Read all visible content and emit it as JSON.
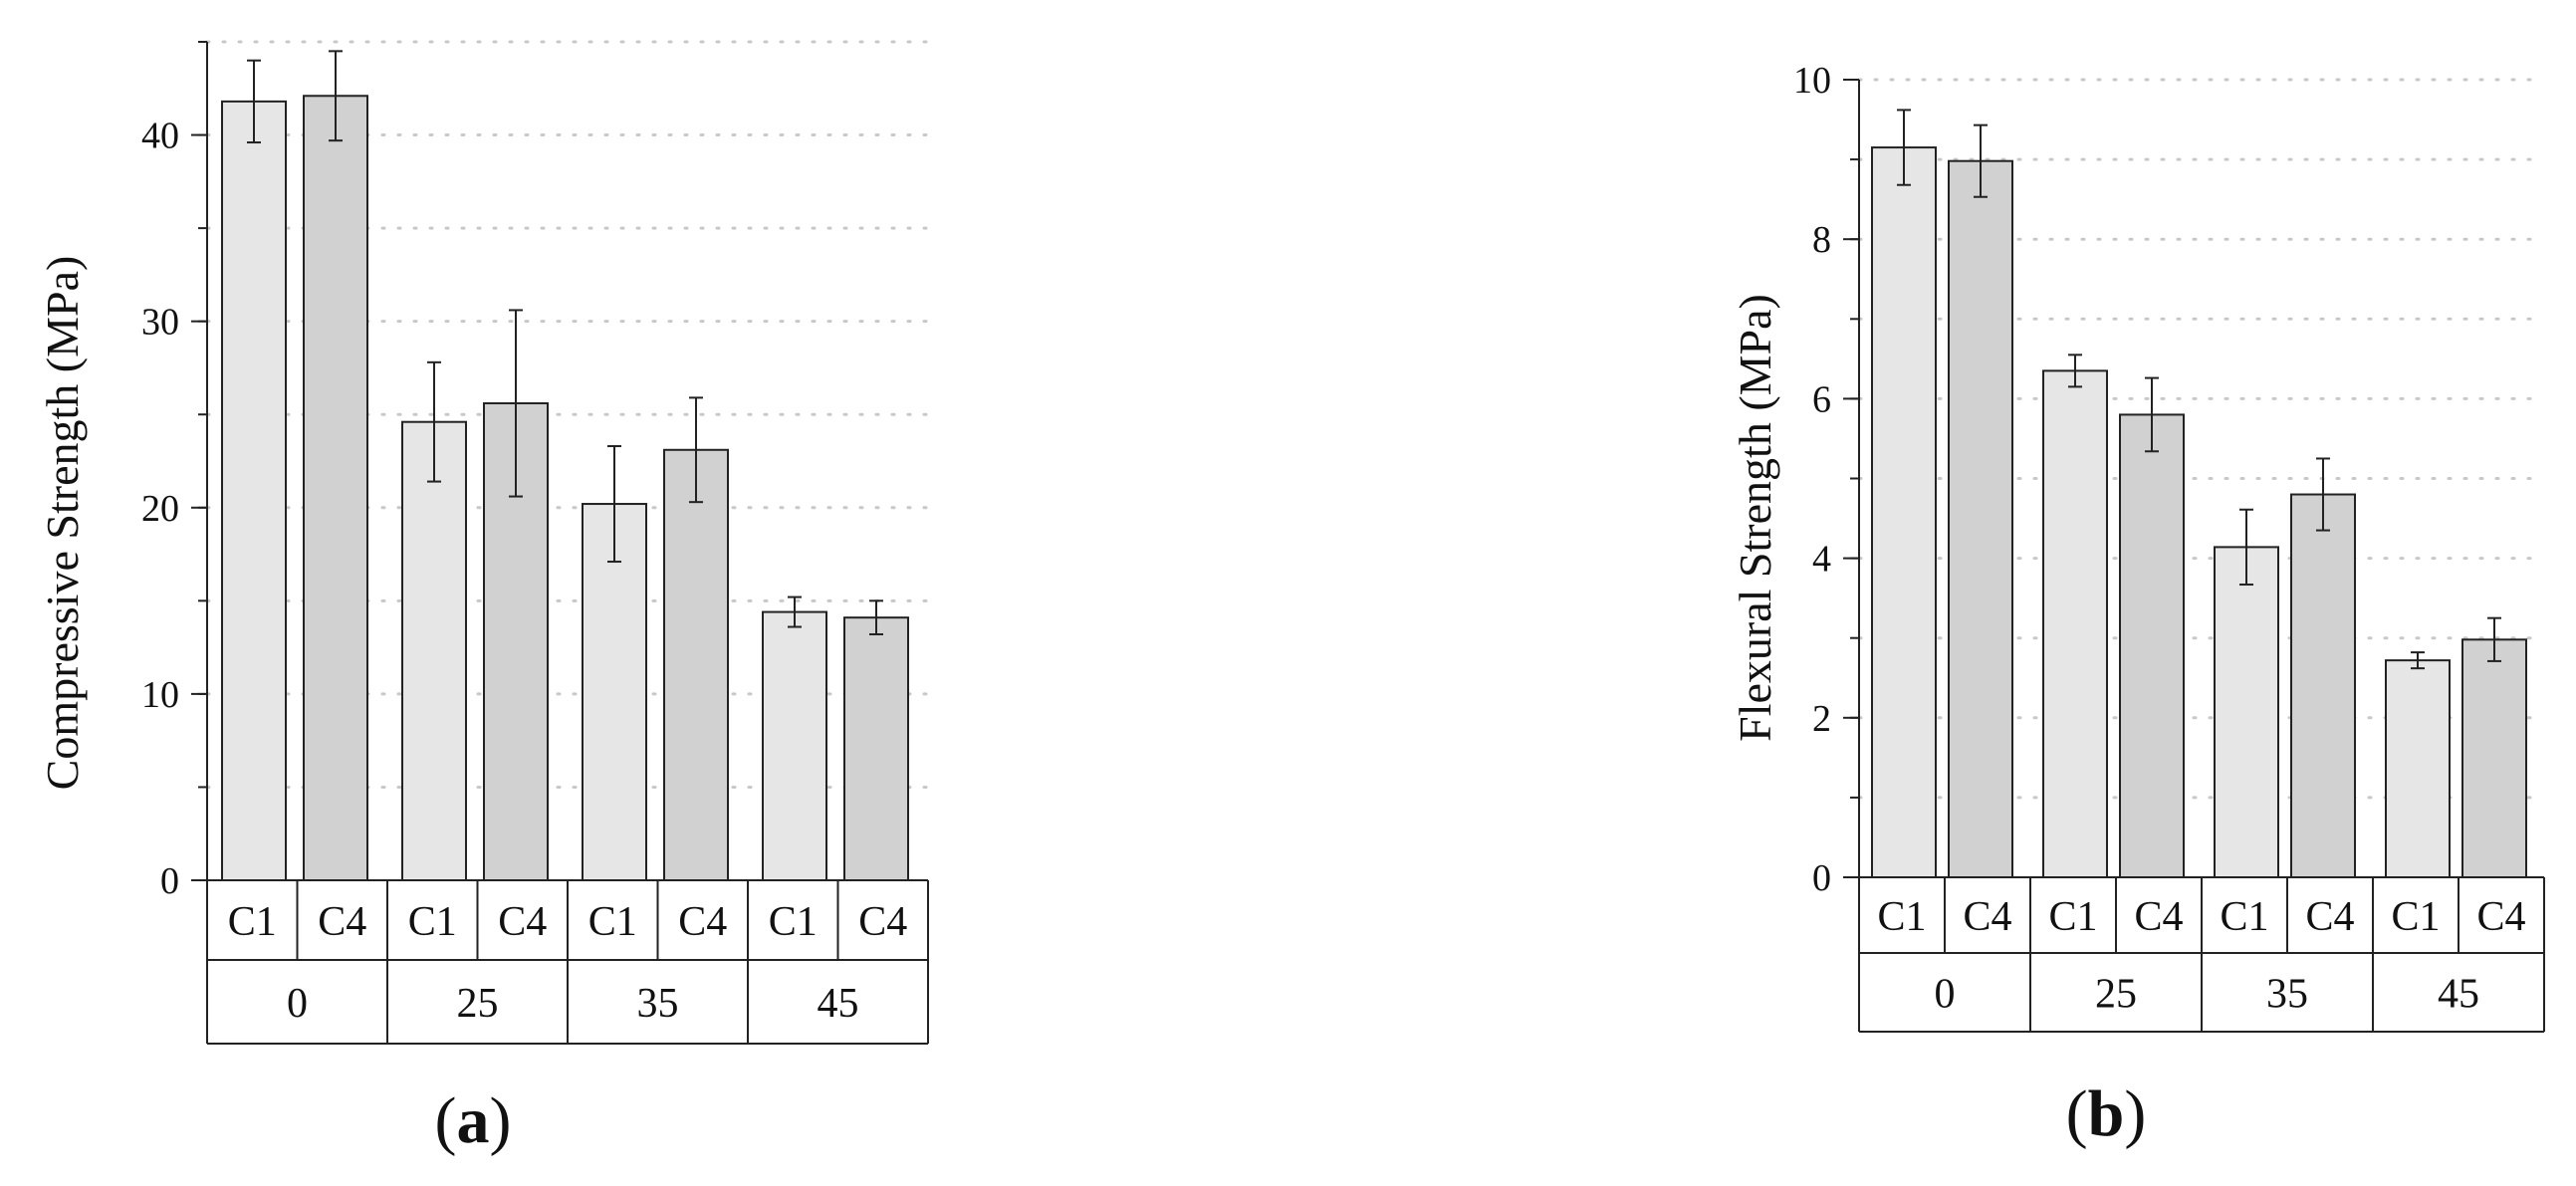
{
  "chart_data": [
    {
      "type": "bar",
      "panel_label": "(a)",
      "ylabel": "Compressive Strength (MPa)",
      "ylim": [
        0,
        45
      ],
      "yticks": [
        0,
        10,
        20,
        30,
        40
      ],
      "grid": "horizontal dotted",
      "groups": [
        "0",
        "25",
        "35",
        "45"
      ],
      "subcategories": [
        "C1",
        "C4"
      ],
      "subcategory_colors": [
        "#e6e6e6",
        "#d1d1d1"
      ],
      "values": [
        [
          41.8,
          42.1
        ],
        [
          24.6,
          25.6
        ],
        [
          20.2,
          23.1
        ],
        [
          14.4,
          14.1
        ]
      ],
      "errors": [
        [
          2.2,
          2.4
        ],
        [
          3.2,
          5.0
        ],
        [
          3.1,
          2.8
        ],
        [
          0.8,
          0.9
        ]
      ]
    },
    {
      "type": "bar",
      "panel_label": "(b)",
      "ylabel": "Flexural Strength (MPa)",
      "ylim": [
        0,
        10
      ],
      "yticks": [
        0,
        2,
        4,
        6,
        8,
        10
      ],
      "grid": "horizontal dotted",
      "groups": [
        "0",
        "25",
        "35",
        "45"
      ],
      "subcategories": [
        "C1",
        "C4"
      ],
      "subcategory_colors": [
        "#e6e6e6",
        "#d1d1d1"
      ],
      "values": [
        [
          9.15,
          8.98
        ],
        [
          6.35,
          5.8
        ],
        [
          4.14,
          4.8
        ],
        [
          2.72,
          2.98
        ]
      ],
      "errors": [
        [
          0.47,
          0.45
        ],
        [
          0.2,
          0.46
        ],
        [
          0.47,
          0.45
        ],
        [
          0.1,
          0.27
        ]
      ]
    }
  ]
}
